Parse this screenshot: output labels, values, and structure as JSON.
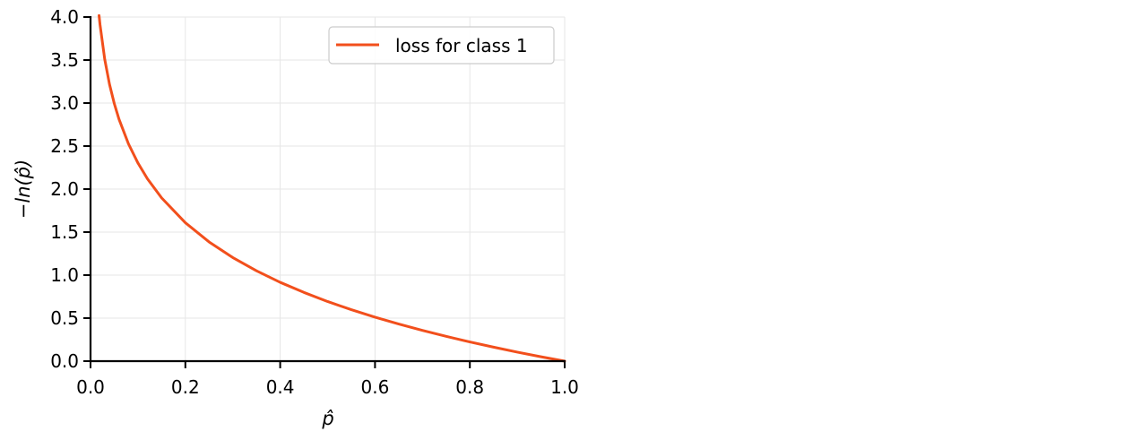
{
  "chart_data": {
    "type": "line",
    "xlabel": "p̂",
    "ylabel": "−ln(p̂)",
    "xlim": [
      0.0,
      1.0
    ],
    "ylim": [
      0.0,
      4.0
    ],
    "x_ticks": [
      "0.0",
      "0.2",
      "0.4",
      "0.6",
      "0.8",
      "1.0"
    ],
    "y_ticks": [
      "0.0",
      "0.5",
      "1.0",
      "1.5",
      "2.0",
      "2.5",
      "3.0",
      "3.5",
      "4.0"
    ],
    "grid": true,
    "legend_position": "top-right",
    "series": [
      {
        "name": "loss for class 1",
        "color": "#f24f1c",
        "function": "-ln(x)",
        "x": [
          0.018,
          0.02,
          0.03,
          0.04,
          0.05,
          0.06,
          0.08,
          0.1,
          0.12,
          0.15,
          0.2,
          0.25,
          0.3,
          0.35,
          0.4,
          0.45,
          0.5,
          0.55,
          0.6,
          0.65,
          0.7,
          0.75,
          0.8,
          0.85,
          0.9,
          0.95,
          1.0
        ],
        "y": [
          4.017,
          3.912,
          3.507,
          3.219,
          2.996,
          2.813,
          2.526,
          2.303,
          2.12,
          1.897,
          1.609,
          1.386,
          1.204,
          1.05,
          0.916,
          0.799,
          0.693,
          0.598,
          0.511,
          0.431,
          0.357,
          0.288,
          0.223,
          0.163,
          0.105,
          0.051,
          0.0
        ]
      }
    ]
  }
}
